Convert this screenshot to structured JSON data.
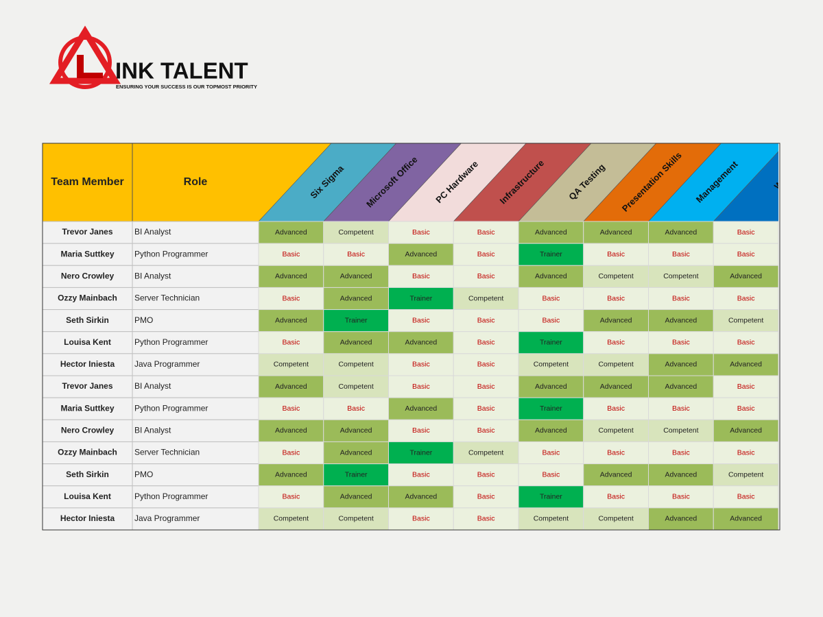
{
  "header": {
    "brand": "INK TALENT",
    "tagline": "ENSURING YOUR SUCCESS IS OUR TOPMOST PRIORITY"
  },
  "table": {
    "columns": [
      "Team Member",
      "Role",
      "Six Sigma",
      "Microsoft Office",
      "PC Hardware",
      "Infrastructure",
      "QA Testing",
      "Presentation Skills",
      "Management",
      "Writ"
    ],
    "skill_colors": [
      "#4bacc6",
      "#8064a2",
      "#f2dcdb",
      "#c0504d",
      "#c4bd97",
      "#e36c09",
      "#00b0f0",
      "#0070c0"
    ],
    "level_colors": {
      "Advanced": "#9bbb59",
      "Competent": "#d8e4bc",
      "Basic": "#ebf1de",
      "Trainer": "#00b050"
    },
    "rows": [
      [
        "Trevor Janes",
        "BI Analyst",
        "Advanced",
        "Competent",
        "Basic",
        "Basic",
        "Advanced",
        "Advanced",
        "Advanced",
        "Basic"
      ],
      [
        "Maria Suttkey",
        "Python Programmer",
        "Basic",
        "Basic",
        "Advanced",
        "Basic",
        "Trainer",
        "Basic",
        "Basic",
        "Basic"
      ],
      [
        "Nero Crowley",
        "BI Analyst",
        "Advanced",
        "Advanced",
        "Basic",
        "Basic",
        "Advanced",
        "Competent",
        "Competent",
        "Advanced"
      ],
      [
        "Ozzy Mainbach",
        "Server Technician",
        "Basic",
        "Advanced",
        "Trainer",
        "Competent",
        "Basic",
        "Basic",
        "Basic",
        "Basic"
      ],
      [
        "Seth Sirkin",
        "PMO",
        "Advanced",
        "Trainer",
        "Basic",
        "Basic",
        "Basic",
        "Advanced",
        "Advanced",
        "Competent"
      ],
      [
        "Louisa Kent",
        "Python Programmer",
        "Basic",
        "Advanced",
        "Advanced",
        "Basic",
        "Trainer",
        "Basic",
        "Basic",
        "Basic"
      ],
      [
        "Hector Iniesta",
        "Java Programmer",
        "Competent",
        "Competent",
        "Basic",
        "Basic",
        "Competent",
        "Competent",
        "Advanced",
        "Advanced"
      ],
      [
        "Trevor Janes",
        "BI Analyst",
        "Advanced",
        "Competent",
        "Basic",
        "Basic",
        "Advanced",
        "Advanced",
        "Advanced",
        "Basic"
      ],
      [
        "Maria Suttkey",
        "Python Programmer",
        "Basic",
        "Basic",
        "Advanced",
        "Basic",
        "Trainer",
        "Basic",
        "Basic",
        "Basic"
      ],
      [
        "Nero Crowley",
        "BI Analyst",
        "Advanced",
        "Advanced",
        "Basic",
        "Basic",
        "Advanced",
        "Competent",
        "Competent",
        "Advanced"
      ],
      [
        "Ozzy Mainbach",
        "Server Technician",
        "Basic",
        "Advanced",
        "Trainer",
        "Competent",
        "Basic",
        "Basic",
        "Basic",
        "Basic"
      ],
      [
        "Seth Sirkin",
        "PMO",
        "Advanced",
        "Trainer",
        "Basic",
        "Basic",
        "Basic",
        "Advanced",
        "Advanced",
        "Competent"
      ],
      [
        "Louisa Kent",
        "Python Programmer",
        "Basic",
        "Advanced",
        "Advanced",
        "Basic",
        "Trainer",
        "Basic",
        "Basic",
        "Basic"
      ],
      [
        "Hector Iniesta",
        "Java Programmer",
        "Competent",
        "Competent",
        "Basic",
        "Basic",
        "Competent",
        "Competent",
        "Advanced",
        "Advanced"
      ]
    ]
  }
}
